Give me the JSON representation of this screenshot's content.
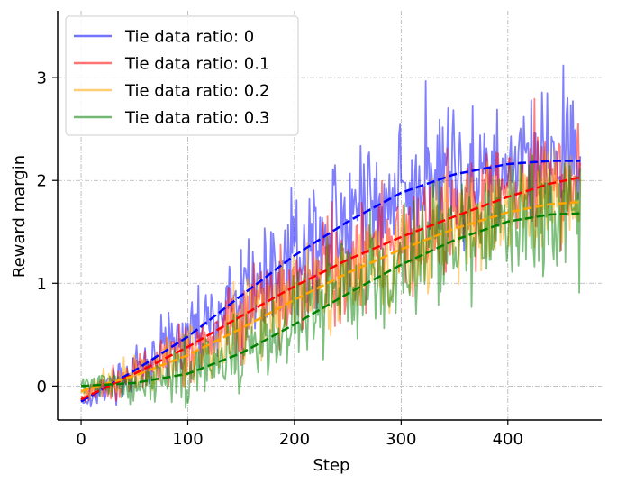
{
  "chart_data": {
    "type": "line",
    "xlabel": "Step",
    "ylabel": "Reward margin",
    "xlim": [
      -22,
      488
    ],
    "ylim": [
      -0.33,
      3.65
    ],
    "xticks": [
      0,
      100,
      200,
      300,
      400
    ],
    "yticks": [
      0,
      1,
      2,
      3
    ],
    "grid": true,
    "legend_position": "top-left",
    "n_steps": 468,
    "series": [
      {
        "name": "Tie data ratio: 0",
        "label": "Tie data ratio: 0",
        "color": "#0000ff",
        "noise_amplitude": 0.3,
        "trend_x": [
          0,
          50,
          100,
          150,
          200,
          250,
          300,
          350,
          400,
          440,
          468
        ],
        "trend_y": [
          -0.15,
          0.15,
          0.48,
          0.88,
          1.27,
          1.6,
          1.88,
          2.06,
          2.16,
          2.19,
          2.19
        ]
      },
      {
        "name": "Tie data ratio: 0.1",
        "label": "Tie data ratio: 0.1",
        "color": "#ff0000",
        "noise_amplitude": 0.26,
        "trend_x": [
          0,
          50,
          100,
          150,
          200,
          250,
          300,
          350,
          400,
          440,
          468
        ],
        "trend_y": [
          -0.13,
          0.12,
          0.38,
          0.68,
          0.97,
          1.23,
          1.45,
          1.65,
          1.84,
          1.97,
          2.03
        ]
      },
      {
        "name": "Tie data ratio: 0.2",
        "label": "Tie data ratio: 0.2",
        "color": "#ffa500",
        "noise_amplitude": 0.24,
        "trend_x": [
          0,
          50,
          100,
          150,
          200,
          250,
          300,
          350,
          400,
          440,
          468
        ],
        "trend_y": [
          -0.05,
          0.1,
          0.3,
          0.56,
          0.84,
          1.1,
          1.33,
          1.53,
          1.69,
          1.77,
          1.79
        ]
      },
      {
        "name": "Tie data ratio: 0.3",
        "label": "Tie data ratio: 0.3",
        "color": "#008000",
        "noise_amplitude": 0.28,
        "trend_x": [
          0,
          50,
          100,
          150,
          200,
          250,
          300,
          350,
          400,
          440,
          468
        ],
        "trend_y": [
          0.0,
          0.03,
          0.12,
          0.32,
          0.6,
          0.9,
          1.18,
          1.42,
          1.6,
          1.67,
          1.68
        ]
      }
    ]
  }
}
